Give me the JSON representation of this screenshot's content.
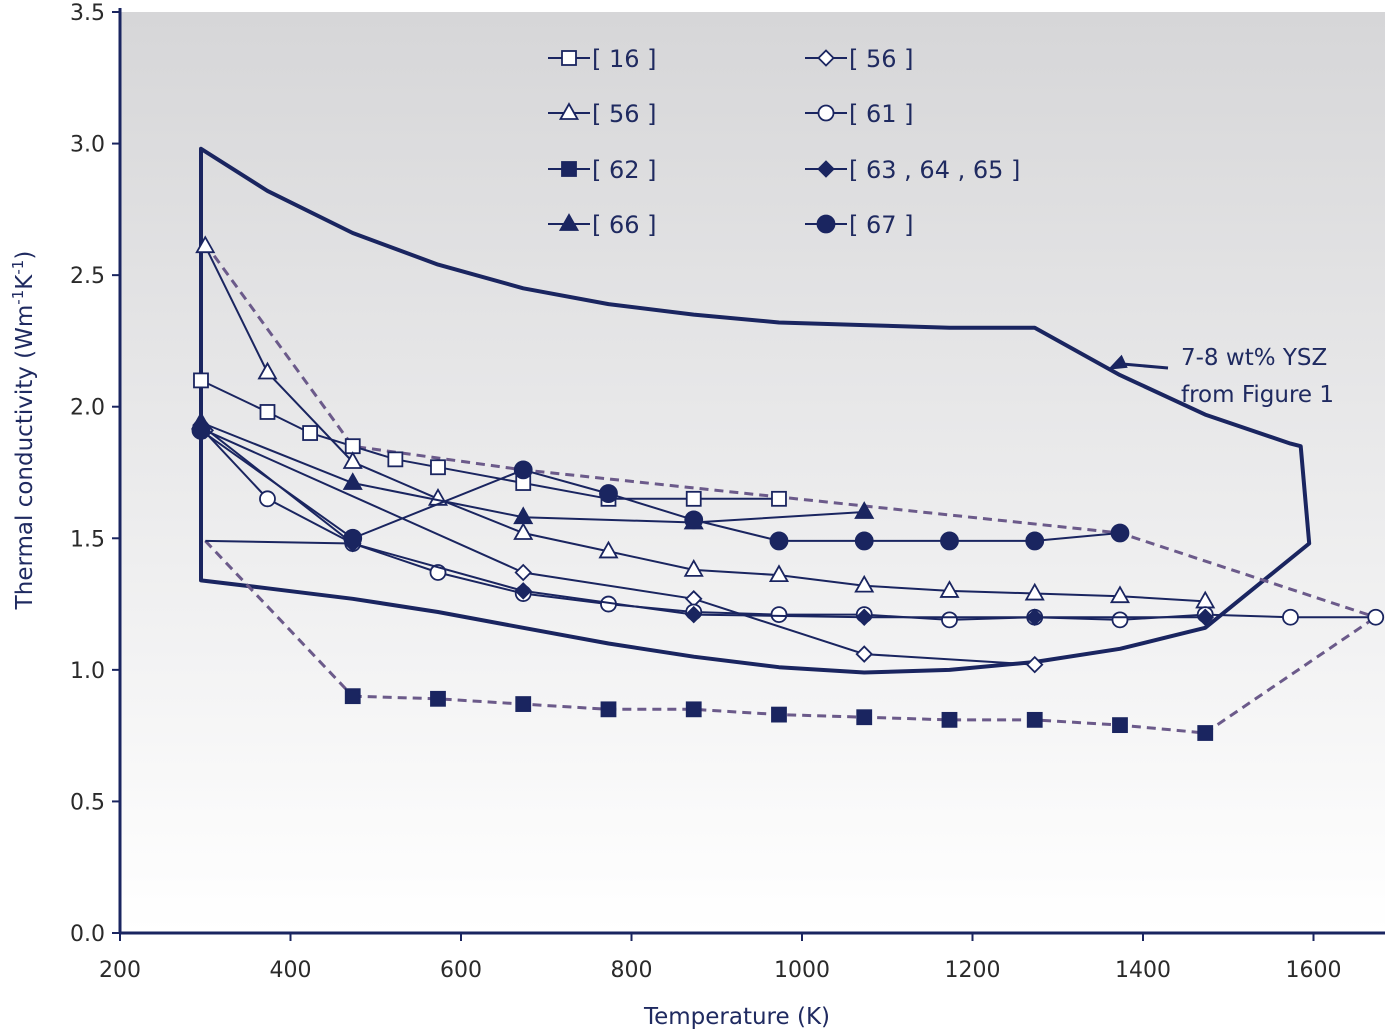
{
  "chart_data": {
    "type": "line",
    "xlabel": "Temperature (K)",
    "ylabel_parts": [
      "Thermal conductivity (Wm",
      "-1",
      "K",
      "-1",
      ")"
    ],
    "xlim": [
      200,
      1680
    ],
    "ylim": [
      0,
      3.5
    ],
    "xticks": [
      200,
      400,
      600,
      800,
      1000,
      1200,
      1400,
      1600
    ],
    "yticks": [
      "0.0",
      "0.5",
      "1.0",
      "1.5",
      "2.0",
      "2.5",
      "3.0",
      "3.5"
    ],
    "legend_position": "top",
    "series": [
      {
        "name": "[ 16 ]",
        "marker": "square",
        "filled": false,
        "line": "solid",
        "x": [
          295,
          373,
          423,
          473,
          523,
          573,
          673,
          773,
          873,
          973
        ],
        "y": [
          2.1,
          1.98,
          1.9,
          1.85,
          1.8,
          1.77,
          1.71,
          1.65,
          1.65,
          1.65
        ]
      },
      {
        "name": "[ 56 ]",
        "marker": "diamond",
        "filled": false,
        "line": "solid",
        "x": [
          300,
          673,
          873,
          1073,
          1273
        ],
        "y": [
          1.91,
          1.37,
          1.27,
          1.06,
          1.02
        ]
      },
      {
        "name": "[ 56 ]",
        "marker": "triangle",
        "filled": false,
        "line": "solid",
        "x": [
          300,
          373,
          473,
          573,
          673,
          773,
          873,
          973,
          1073,
          1173,
          1273,
          1373,
          1473
        ],
        "y": [
          2.61,
          2.13,
          1.79,
          1.65,
          1.52,
          1.45,
          1.38,
          1.36,
          1.32,
          1.3,
          1.29,
          1.28,
          1.26
        ]
      },
      {
        "name": "[ 61 ]",
        "marker": "circle",
        "filled": false,
        "line": "solid",
        "x": [
          295,
          373,
          473,
          573,
          673,
          773,
          873,
          973,
          1073,
          1173,
          1273,
          1373,
          1473,
          1573,
          1673
        ],
        "y": [
          1.92,
          1.65,
          1.48,
          1.37,
          1.29,
          1.25,
          1.22,
          1.21,
          1.21,
          1.19,
          1.2,
          1.19,
          1.21,
          1.2,
          1.2
        ]
      },
      {
        "name": "[ 62 ]",
        "marker": "square",
        "filled": true,
        "line": "dashed",
        "x": [
          473,
          573,
          673,
          773,
          873,
          973,
          1073,
          1173,
          1273,
          1373,
          1473
        ],
        "y": [
          0.9,
          0.89,
          0.87,
          0.85,
          0.85,
          0.83,
          0.82,
          0.81,
          0.81,
          0.79,
          0.76
        ]
      },
      {
        "name": "[ 63 , 64 , 65 ]",
        "marker": "diamond",
        "filled": true,
        "line": "solid",
        "x": [
          295,
          473,
          673,
          873,
          1073,
          1273,
          1473
        ],
        "y": [
          1.93,
          1.48,
          1.3,
          1.21,
          1.2,
          1.2,
          1.2
        ]
      },
      {
        "name": "[ 66 ]",
        "marker": "triangle",
        "filled": true,
        "line": "solid",
        "x": [
          295,
          473,
          673,
          873,
          1073
        ],
        "y": [
          1.94,
          1.71,
          1.58,
          1.56,
          1.6
        ]
      },
      {
        "name": "[ 67 ]",
        "marker": "circle",
        "filled": true,
        "line": "solid",
        "x": [
          295,
          473,
          673,
          773,
          873,
          973,
          1073,
          1173,
          1273,
          1373
        ],
        "y": [
          1.91,
          1.5,
          1.76,
          1.67,
          1.57,
          1.49,
          1.49,
          1.49,
          1.49,
          1.52
        ]
      }
    ],
    "extra_dashed_line": {
      "x": [
        300,
        473,
        673,
        1373,
        1673
      ],
      "y": [
        2.62,
        1.85,
        1.76,
        1.52,
        1.2
      ]
    },
    "extra_dashed_line_2": {
      "x": [
        300,
        473
      ],
      "y": [
        1.49,
        0.9
      ]
    },
    "dashed_connector": {
      "x": [
        1473,
        1673
      ],
      "y": [
        0.76,
        1.2
      ]
    },
    "extra_solid_line": {
      "x": [
        300,
        473
      ],
      "y": [
        1.49,
        1.48
      ]
    },
    "ysz_envelope": {
      "upper_x": [
        295,
        373,
        473,
        573,
        673,
        773,
        873,
        973,
        1073,
        1173,
        1273,
        1373,
        1473,
        1573,
        1585
      ],
      "upper_y": [
        2.98,
        2.82,
        2.66,
        2.54,
        2.45,
        2.39,
        2.35,
        2.32,
        2.31,
        2.3,
        2.3,
        2.12,
        1.97,
        1.86,
        1.85
      ],
      "right_x": [
        1585,
        1595
      ],
      "right_y": [
        1.85,
        1.48
      ],
      "lower_x": [
        1595,
        1473,
        1373,
        1273,
        1173,
        1073,
        973,
        873,
        773,
        673,
        573,
        473,
        373,
        295
      ],
      "lower_y": [
        1.48,
        1.16,
        1.08,
        1.03,
        1.0,
        0.99,
        1.01,
        1.05,
        1.1,
        1.16,
        1.22,
        1.27,
        1.31,
        1.34
      ]
    },
    "annotation": {
      "lines": [
        "7-8 wt% YSZ",
        "from Figure 1"
      ],
      "arrow_to": [
        1375,
        2.11
      ]
    }
  }
}
